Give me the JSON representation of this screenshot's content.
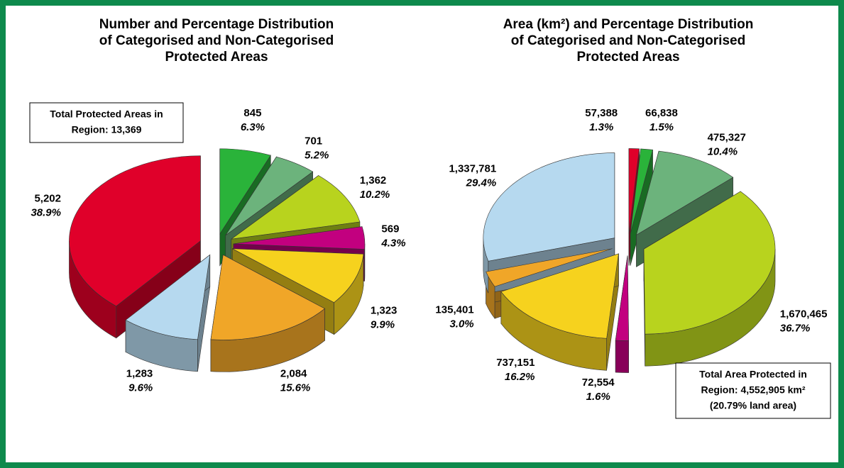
{
  "chart_data": [
    {
      "type": "pie",
      "title": [
        "Number and Percentage Distribution",
        "of Categorised and Non-Categorised",
        "Protected Areas"
      ],
      "values": [
        845,
        701,
        1362,
        569,
        1323,
        2084,
        1283,
        5202
      ],
      "value_labels": [
        "845",
        "701",
        "1,362",
        "569",
        "1,323",
        "2,084",
        "1,283",
        "5,202"
      ],
      "percent_labels": [
        "6.3%",
        "5.2%",
        "10.2%",
        "4.3%",
        "9.9%",
        "15.6%",
        "9.6%",
        "38.9%"
      ],
      "colors": [
        "#2ab33a",
        "#6cb37c",
        "#b8d31e",
        "#c2007f",
        "#f6d21e",
        "#f0a628",
        "#b6d9ef",
        "#e0002a"
      ],
      "annotation": [
        "Total Protected Areas in",
        "Region: 13,369"
      ]
    },
    {
      "type": "pie",
      "title": [
        "Area (km²) and Percentage Distribution",
        "of Categorised and Non-Categorised",
        "Protected Areas"
      ],
      "values": [
        57388,
        66838,
        475327,
        1670465,
        72554,
        737151,
        135401,
        1337781
      ],
      "value_labels": [
        "57,388",
        "66,838",
        "475,327",
        "1,670,465",
        "72,554",
        "737,151",
        "135,401",
        "1,337,781"
      ],
      "percent_labels": [
        "1.3%",
        "1.5%",
        "10.4%",
        "36.7%",
        "1.6%",
        "16.2%",
        "3.0%",
        "29.4%"
      ],
      "colors": [
        "#e0002a",
        "#2ab33a",
        "#6cb37c",
        "#b8d31e",
        "#c2007f",
        "#f6d21e",
        "#f0a628",
        "#b6d9ef"
      ],
      "annotation": [
        "Total Area Protected in",
        "Region: 4,552,905 km²",
        "(20.79% land area)"
      ]
    }
  ]
}
